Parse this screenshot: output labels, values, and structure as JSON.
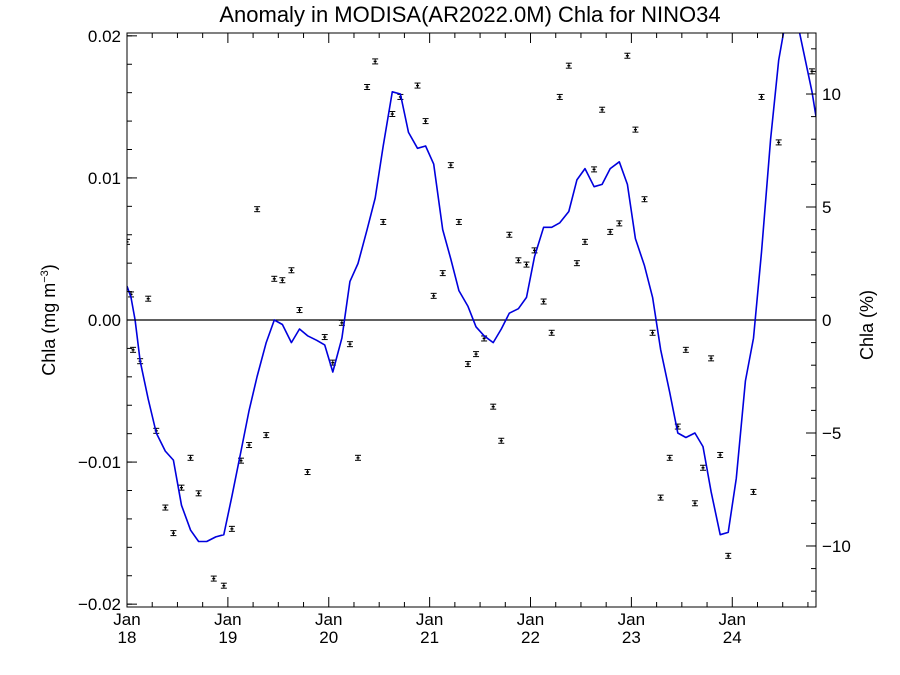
{
  "chart_data": {
    "type": "scatter",
    "title": "Anomaly in MODISA(AR2022.0M) Chla for NINO34",
    "ylabel_left": "Chla (mg m",
    "ylabel_left_sup": "−3",
    "ylabel_left_close": ")",
    "ylabel_right": "Chla (%)",
    "x_range": [
      2018.0,
      2024.83
    ],
    "y_left_range": [
      -0.0202,
      0.0202
    ],
    "y_right_range": [
      -12.7,
      12.7
    ],
    "x_ticks": [
      {
        "x": 2018,
        "month": "Jan",
        "year": "18"
      },
      {
        "x": 2019,
        "month": "Jan",
        "year": "19"
      },
      {
        "x": 2020,
        "month": "Jan",
        "year": "20"
      },
      {
        "x": 2021,
        "month": "Jan",
        "year": "21"
      },
      {
        "x": 2022,
        "month": "Jan",
        "year": "22"
      },
      {
        "x": 2023,
        "month": "Jan",
        "year": "23"
      },
      {
        "x": 2024,
        "month": "Jan",
        "year": "24"
      }
    ],
    "y_left_ticks": [
      {
        "v": 0.02,
        "label": "0.02"
      },
      {
        "v": 0.01,
        "label": "0.01"
      },
      {
        "v": 0.0,
        "label": "0.00"
      },
      {
        "v": -0.01,
        "label": "−0.01"
      },
      {
        "v": -0.02,
        "label": "−0.02"
      }
    ],
    "y_right_ticks": [
      {
        "v": 10,
        "label": "10"
      },
      {
        "v": 5,
        "label": "5"
      },
      {
        "v": 0,
        "label": "0"
      },
      {
        "v": -5,
        "label": "−5"
      },
      {
        "v": -10,
        "label": "−10"
      }
    ],
    "zero_line": true,
    "series": [
      {
        "kind": "scatter_errorbar",
        "axis": "left",
        "color": "#000000",
        "points": [
          {
            "x": 2018.0,
            "y": 0.0055
          },
          {
            "x": 2018.04,
            "y": 0.0018
          },
          {
            "x": 2018.06,
            "y": -0.0021
          },
          {
            "x": 2018.13,
            "y": -0.0029
          },
          {
            "x": 2018.21,
            "y": 0.0015
          },
          {
            "x": 2018.29,
            "y": -0.0078
          },
          {
            "x": 2018.38,
            "y": -0.0132
          },
          {
            "x": 2018.46,
            "y": -0.015
          },
          {
            "x": 2018.54,
            "y": -0.0118
          },
          {
            "x": 2018.63,
            "y": -0.0097
          },
          {
            "x": 2018.71,
            "y": -0.0122
          },
          {
            "x": 2018.86,
            "y": -0.0182
          },
          {
            "x": 2018.96,
            "y": -0.0187
          },
          {
            "x": 2019.04,
            "y": -0.0147
          },
          {
            "x": 2019.13,
            "y": -0.0099
          },
          {
            "x": 2019.21,
            "y": -0.0088
          },
          {
            "x": 2019.29,
            "y": 0.0078
          },
          {
            "x": 2019.38,
            "y": -0.0081
          },
          {
            "x": 2019.46,
            "y": 0.0029
          },
          {
            "x": 2019.54,
            "y": 0.0028
          },
          {
            "x": 2019.63,
            "y": 0.0035
          },
          {
            "x": 2019.71,
            "y": 0.0007
          },
          {
            "x": 2019.79,
            "y": -0.0107
          },
          {
            "x": 2019.96,
            "y": -0.0012
          },
          {
            "x": 2020.04,
            "y": -0.003
          },
          {
            "x": 2020.13,
            "y": -0.0002
          },
          {
            "x": 2020.21,
            "y": -0.0017
          },
          {
            "x": 2020.29,
            "y": -0.0097
          },
          {
            "x": 2020.38,
            "y": 0.0164
          },
          {
            "x": 2020.46,
            "y": 0.0182
          },
          {
            "x": 2020.54,
            "y": 0.0069
          },
          {
            "x": 2020.63,
            "y": 0.0145
          },
          {
            "x": 2020.71,
            "y": 0.0157
          },
          {
            "x": 2020.88,
            "y": 0.0165
          },
          {
            "x": 2020.96,
            "y": 0.014
          },
          {
            "x": 2021.04,
            "y": 0.0017
          },
          {
            "x": 2021.13,
            "y": 0.0033
          },
          {
            "x": 2021.21,
            "y": 0.0109
          },
          {
            "x": 2021.29,
            "y": 0.0069
          },
          {
            "x": 2021.38,
            "y": -0.0031
          },
          {
            "x": 2021.46,
            "y": -0.0024
          },
          {
            "x": 2021.54,
            "y": -0.0013
          },
          {
            "x": 2021.63,
            "y": -0.0061
          },
          {
            "x": 2021.71,
            "y": -0.0085
          },
          {
            "x": 2021.79,
            "y": 0.006
          },
          {
            "x": 2021.88,
            "y": 0.0042
          },
          {
            "x": 2021.96,
            "y": 0.0039
          },
          {
            "x": 2022.04,
            "y": 0.0049
          },
          {
            "x": 2022.13,
            "y": 0.0013
          },
          {
            "x": 2022.21,
            "y": -0.0009
          },
          {
            "x": 2022.29,
            "y": 0.0157
          },
          {
            "x": 2022.38,
            "y": 0.0179
          },
          {
            "x": 2022.46,
            "y": 0.004
          },
          {
            "x": 2022.54,
            "y": 0.0055
          },
          {
            "x": 2022.63,
            "y": 0.0106
          },
          {
            "x": 2022.71,
            "y": 0.0148
          },
          {
            "x": 2022.79,
            "y": 0.0062
          },
          {
            "x": 2022.88,
            "y": 0.0068
          },
          {
            "x": 2022.96,
            "y": 0.0186
          },
          {
            "x": 2023.04,
            "y": 0.0134
          },
          {
            "x": 2023.13,
            "y": 0.0085
          },
          {
            "x": 2023.21,
            "y": -0.0009
          },
          {
            "x": 2023.29,
            "y": -0.0125
          },
          {
            "x": 2023.38,
            "y": -0.0097
          },
          {
            "x": 2023.46,
            "y": -0.0075
          },
          {
            "x": 2023.54,
            "y": -0.0021
          },
          {
            "x": 2023.63,
            "y": -0.0129
          },
          {
            "x": 2023.71,
            "y": -0.0104
          },
          {
            "x": 2023.79,
            "y": -0.0027
          },
          {
            "x": 2023.88,
            "y": -0.0095
          },
          {
            "x": 2023.96,
            "y": -0.0166
          },
          {
            "x": 2024.21,
            "y": -0.0121
          },
          {
            "x": 2024.29,
            "y": 0.0157
          },
          {
            "x": 2024.46,
            "y": 0.0125
          },
          {
            "x": 2024.79,
            "y": 0.0175
          }
        ]
      },
      {
        "kind": "line",
        "axis": "right",
        "color": "#0000dd",
        "points": [
          {
            "x": 2018.0,
            "y": 1.5
          },
          {
            "x": 2018.04,
            "y": 1.0
          },
          {
            "x": 2018.08,
            "y": 0.0
          },
          {
            "x": 2018.13,
            "y": -1.8
          },
          {
            "x": 2018.21,
            "y": -3.5
          },
          {
            "x": 2018.29,
            "y": -5.0
          },
          {
            "x": 2018.38,
            "y": -5.8
          },
          {
            "x": 2018.46,
            "y": -6.2
          },
          {
            "x": 2018.54,
            "y": -8.2
          },
          {
            "x": 2018.63,
            "y": -9.3
          },
          {
            "x": 2018.71,
            "y": -9.8
          },
          {
            "x": 2018.79,
            "y": -9.8
          },
          {
            "x": 2018.88,
            "y": -9.6
          },
          {
            "x": 2018.96,
            "y": -9.5
          },
          {
            "x": 2019.04,
            "y": -7.8
          },
          {
            "x": 2019.13,
            "y": -5.8
          },
          {
            "x": 2019.21,
            "y": -4.0
          },
          {
            "x": 2019.29,
            "y": -2.5
          },
          {
            "x": 2019.38,
            "y": -1.0
          },
          {
            "x": 2019.46,
            "y": 0.0
          },
          {
            "x": 2019.54,
            "y": -0.2
          },
          {
            "x": 2019.63,
            "y": -1.0
          },
          {
            "x": 2019.71,
            "y": -0.4
          },
          {
            "x": 2019.79,
            "y": -0.7
          },
          {
            "x": 2019.88,
            "y": -0.9
          },
          {
            "x": 2019.96,
            "y": -1.1
          },
          {
            "x": 2020.04,
            "y": -2.3
          },
          {
            "x": 2020.13,
            "y": -0.8
          },
          {
            "x": 2020.21,
            "y": 1.7
          },
          {
            "x": 2020.29,
            "y": 2.5
          },
          {
            "x": 2020.38,
            "y": 4.0
          },
          {
            "x": 2020.46,
            "y": 5.4
          },
          {
            "x": 2020.54,
            "y": 7.7
          },
          {
            "x": 2020.63,
            "y": 10.1
          },
          {
            "x": 2020.71,
            "y": 10.0
          },
          {
            "x": 2020.79,
            "y": 8.3
          },
          {
            "x": 2020.88,
            "y": 7.6
          },
          {
            "x": 2020.96,
            "y": 7.7
          },
          {
            "x": 2021.04,
            "y": 6.9
          },
          {
            "x": 2021.13,
            "y": 4.0
          },
          {
            "x": 2021.21,
            "y": 2.7
          },
          {
            "x": 2021.29,
            "y": 1.3
          },
          {
            "x": 2021.38,
            "y": 0.6
          },
          {
            "x": 2021.46,
            "y": -0.3
          },
          {
            "x": 2021.54,
            "y": -0.7
          },
          {
            "x": 2021.63,
            "y": -1.0
          },
          {
            "x": 2021.71,
            "y": -0.4
          },
          {
            "x": 2021.79,
            "y": 0.3
          },
          {
            "x": 2021.88,
            "y": 0.5
          },
          {
            "x": 2021.96,
            "y": 1.0
          },
          {
            "x": 2022.04,
            "y": 2.8
          },
          {
            "x": 2022.13,
            "y": 4.1
          },
          {
            "x": 2022.21,
            "y": 4.1
          },
          {
            "x": 2022.29,
            "y": 4.3
          },
          {
            "x": 2022.38,
            "y": 4.8
          },
          {
            "x": 2022.46,
            "y": 6.2
          },
          {
            "x": 2022.54,
            "y": 6.7
          },
          {
            "x": 2022.63,
            "y": 5.9
          },
          {
            "x": 2022.71,
            "y": 6.0
          },
          {
            "x": 2022.79,
            "y": 6.7
          },
          {
            "x": 2022.88,
            "y": 7.0
          },
          {
            "x": 2022.96,
            "y": 6.0
          },
          {
            "x": 2023.04,
            "y": 3.6
          },
          {
            "x": 2023.13,
            "y": 2.4
          },
          {
            "x": 2023.21,
            "y": 1.0
          },
          {
            "x": 2023.29,
            "y": -1.3
          },
          {
            "x": 2023.38,
            "y": -3.2
          },
          {
            "x": 2023.46,
            "y": -5.0
          },
          {
            "x": 2023.54,
            "y": -5.2
          },
          {
            "x": 2023.63,
            "y": -5.0
          },
          {
            "x": 2023.71,
            "y": -5.6
          },
          {
            "x": 2023.79,
            "y": -7.6
          },
          {
            "x": 2023.88,
            "y": -9.5
          },
          {
            "x": 2023.96,
            "y": -9.4
          },
          {
            "x": 2024.04,
            "y": -7.0
          },
          {
            "x": 2024.13,
            "y": -2.7
          },
          {
            "x": 2024.21,
            "y": -0.8
          },
          {
            "x": 2024.29,
            "y": 3.0
          },
          {
            "x": 2024.38,
            "y": 8.0
          },
          {
            "x": 2024.46,
            "y": 11.5
          },
          {
            "x": 2024.54,
            "y": 13.5
          },
          {
            "x": 2024.63,
            "y": 13.5
          },
          {
            "x": 2024.71,
            "y": 11.8
          },
          {
            "x": 2024.79,
            "y": 10.1
          },
          {
            "x": 2024.83,
            "y": 9.0
          }
        ]
      }
    ]
  }
}
